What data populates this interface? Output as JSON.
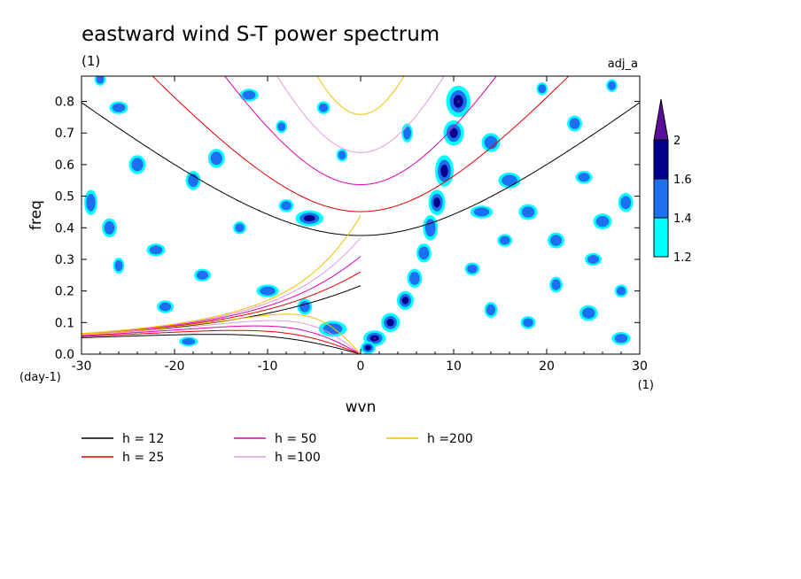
{
  "chart_data": {
    "type": "heatmap",
    "title": "eastward wind S-T power spectrum",
    "units_label": "(1)",
    "case_label": "adj_a",
    "xlabel": "wvn",
    "ylabel": "freq",
    "x_unit": "(1)",
    "y_unit": "(day-1)",
    "xlim": [
      -30,
      30
    ],
    "ylim": [
      0,
      0.88
    ],
    "xticks": [
      -30,
      -20,
      -10,
      0,
      10,
      20,
      30
    ],
    "yticks": [
      0.0,
      0.1,
      0.2,
      0.3,
      0.4,
      0.5,
      0.6,
      0.7,
      0.8
    ],
    "xtick_labels": [
      "-30",
      "-20",
      "-10",
      "0",
      "10",
      "20",
      "30"
    ],
    "ytick_labels": [
      "0.0",
      "0.1",
      "0.2",
      "0.3",
      "0.4",
      "0.5",
      "0.6",
      "0.7",
      "0.8"
    ],
    "colorbar": {
      "levels": [
        1.2,
        1.4,
        1.6,
        2
      ],
      "labels": [
        "1.2",
        "1.4",
        "1.6",
        "2"
      ],
      "colors": [
        "#00ffff",
        "#1e6ff0",
        "#00008b",
        "#5a0f9b"
      ]
    },
    "dispersion_curves": [
      {
        "name": "h = 12",
        "h": 12,
        "color": "#000000"
      },
      {
        "name": "h = 25",
        "h": 25,
        "color": "#e00000"
      },
      {
        "name": "h = 50",
        "h": 50,
        "color": "#e000b0"
      },
      {
        "name": "h =100",
        "h": 100,
        "color": "#e09be0"
      },
      {
        "name": "h =200",
        "h": 200,
        "color": "#f0c000"
      }
    ],
    "power_blobs": [
      {
        "x": 10.5,
        "y": 0.8,
        "sx": 1.3,
        "sy": 0.05,
        "level": 4
      },
      {
        "x": 10.0,
        "y": 0.7,
        "sx": 1.1,
        "sy": 0.04,
        "level": 3
      },
      {
        "x": 9.0,
        "y": 0.58,
        "sx": 1.0,
        "sy": 0.05,
        "level": 3
      },
      {
        "x": 8.2,
        "y": 0.48,
        "sx": 0.9,
        "sy": 0.04,
        "level": 3
      },
      {
        "x": 7.5,
        "y": 0.4,
        "sx": 0.8,
        "sy": 0.04,
        "level": 2
      },
      {
        "x": 6.8,
        "y": 0.32,
        "sx": 0.8,
        "sy": 0.03,
        "level": 2
      },
      {
        "x": 5.8,
        "y": 0.24,
        "sx": 0.8,
        "sy": 0.03,
        "level": 2
      },
      {
        "x": 4.8,
        "y": 0.17,
        "sx": 0.9,
        "sy": 0.03,
        "level": 3
      },
      {
        "x": 3.2,
        "y": 0.1,
        "sx": 1.0,
        "sy": 0.03,
        "level": 3
      },
      {
        "x": 1.5,
        "y": 0.05,
        "sx": 1.2,
        "sy": 0.025,
        "level": 4
      },
      {
        "x": 0.8,
        "y": 0.02,
        "sx": 0.8,
        "sy": 0.02,
        "level": 3
      },
      {
        "x": 5.0,
        "y": 0.7,
        "sx": 0.6,
        "sy": 0.03,
        "level": 2
      },
      {
        "x": -5.5,
        "y": 0.43,
        "sx": 1.5,
        "sy": 0.025,
        "level": 3
      },
      {
        "x": -8.0,
        "y": 0.47,
        "sx": 0.8,
        "sy": 0.02,
        "level": 2
      },
      {
        "x": -3.0,
        "y": 0.08,
        "sx": 1.5,
        "sy": 0.025,
        "level": 2
      },
      {
        "x": -6.0,
        "y": 0.15,
        "sx": 0.8,
        "sy": 0.025,
        "level": 2
      },
      {
        "x": -10.0,
        "y": 0.2,
        "sx": 1.2,
        "sy": 0.02,
        "level": 2
      },
      {
        "x": -15.5,
        "y": 0.62,
        "sx": 0.9,
        "sy": 0.03,
        "level": 2
      },
      {
        "x": -12.0,
        "y": 0.82,
        "sx": 1.0,
        "sy": 0.02,
        "level": 2
      },
      {
        "x": -18.0,
        "y": 0.55,
        "sx": 0.8,
        "sy": 0.03,
        "level": 2
      },
      {
        "x": -24.0,
        "y": 0.6,
        "sx": 0.9,
        "sy": 0.03,
        "level": 2
      },
      {
        "x": -29.0,
        "y": 0.48,
        "sx": 0.7,
        "sy": 0.04,
        "level": 2
      },
      {
        "x": -27.0,
        "y": 0.4,
        "sx": 0.8,
        "sy": 0.03,
        "level": 2
      },
      {
        "x": -22.0,
        "y": 0.33,
        "sx": 1.0,
        "sy": 0.02,
        "level": 2
      },
      {
        "x": -17.0,
        "y": 0.25,
        "sx": 0.9,
        "sy": 0.02,
        "level": 2
      },
      {
        "x": -21.0,
        "y": 0.15,
        "sx": 0.9,
        "sy": 0.02,
        "level": 2
      },
      {
        "x": -26.0,
        "y": 0.78,
        "sx": 1.0,
        "sy": 0.02,
        "level": 2
      },
      {
        "x": -28.0,
        "y": 0.87,
        "sx": 0.6,
        "sy": 0.02,
        "level": 2
      },
      {
        "x": -4.0,
        "y": 0.78,
        "sx": 0.7,
        "sy": 0.02,
        "level": 2
      },
      {
        "x": -8.5,
        "y": 0.72,
        "sx": 0.6,
        "sy": 0.02,
        "level": 2
      },
      {
        "x": -2.0,
        "y": 0.63,
        "sx": 0.6,
        "sy": 0.02,
        "level": 2
      },
      {
        "x": 14.0,
        "y": 0.67,
        "sx": 1.0,
        "sy": 0.03,
        "level": 2
      },
      {
        "x": 16.0,
        "y": 0.55,
        "sx": 1.2,
        "sy": 0.025,
        "level": 2
      },
      {
        "x": 18.0,
        "y": 0.45,
        "sx": 1.0,
        "sy": 0.025,
        "level": 2
      },
      {
        "x": 13.0,
        "y": 0.45,
        "sx": 1.2,
        "sy": 0.02,
        "level": 2
      },
      {
        "x": 15.5,
        "y": 0.36,
        "sx": 0.8,
        "sy": 0.02,
        "level": 2
      },
      {
        "x": 21.0,
        "y": 0.36,
        "sx": 0.9,
        "sy": 0.025,
        "level": 2
      },
      {
        "x": 25.0,
        "y": 0.3,
        "sx": 0.9,
        "sy": 0.02,
        "level": 2
      },
      {
        "x": 21.0,
        "y": 0.22,
        "sx": 0.7,
        "sy": 0.025,
        "level": 2
      },
      {
        "x": 26.0,
        "y": 0.42,
        "sx": 1.0,
        "sy": 0.025,
        "level": 2
      },
      {
        "x": 24.0,
        "y": 0.56,
        "sx": 0.9,
        "sy": 0.02,
        "level": 2
      },
      {
        "x": 28.5,
        "y": 0.48,
        "sx": 0.8,
        "sy": 0.03,
        "level": 2
      },
      {
        "x": 23.0,
        "y": 0.73,
        "sx": 0.8,
        "sy": 0.025,
        "level": 2
      },
      {
        "x": 27.0,
        "y": 0.85,
        "sx": 0.6,
        "sy": 0.02,
        "level": 2
      },
      {
        "x": 24.5,
        "y": 0.13,
        "sx": 1.0,
        "sy": 0.025,
        "level": 2
      },
      {
        "x": 18.0,
        "y": 0.1,
        "sx": 0.8,
        "sy": 0.02,
        "level": 2
      },
      {
        "x": 14.0,
        "y": 0.14,
        "sx": 0.7,
        "sy": 0.025,
        "level": 2
      },
      {
        "x": 28.0,
        "y": 0.05,
        "sx": 1.0,
        "sy": 0.02,
        "level": 2
      },
      {
        "x": 12.0,
        "y": 0.27,
        "sx": 0.8,
        "sy": 0.02,
        "level": 2
      },
      {
        "x": 28.0,
        "y": 0.2,
        "sx": 0.7,
        "sy": 0.02,
        "level": 2
      },
      {
        "x": 19.5,
        "y": 0.84,
        "sx": 0.6,
        "sy": 0.02,
        "level": 2
      },
      {
        "x": -13.0,
        "y": 0.4,
        "sx": 0.7,
        "sy": 0.02,
        "level": 2
      },
      {
        "x": -26.0,
        "y": 0.28,
        "sx": 0.6,
        "sy": 0.025,
        "level": 2
      },
      {
        "x": -18.5,
        "y": 0.04,
        "sx": 1.0,
        "sy": 0.015,
        "level": 2
      }
    ]
  }
}
